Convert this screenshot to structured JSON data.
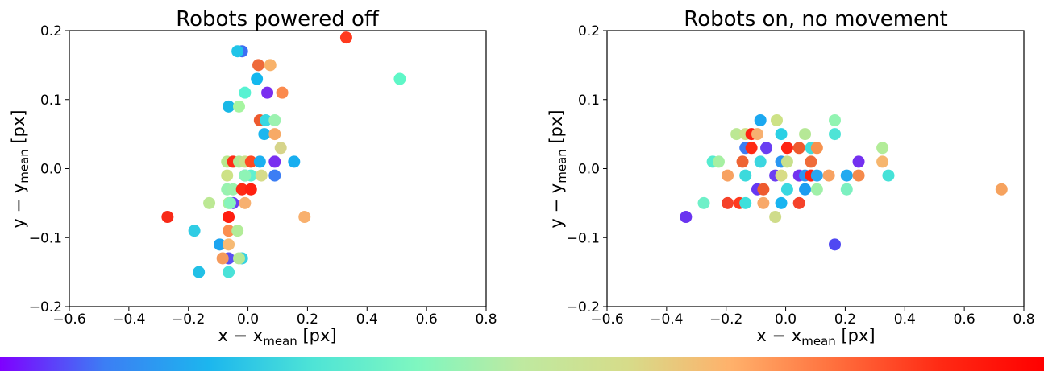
{
  "chart_data": [
    {
      "type": "scatter",
      "title": "Robots powered off",
      "xlabel": {
        "prefix": "x − x",
        "sub": "mean",
        "suffix": " [px]"
      },
      "ylabel": {
        "prefix": "y − y",
        "sub": "mean",
        "suffix": " [px]"
      },
      "xlim": [
        -0.6,
        0.8
      ],
      "ylim": [
        -0.2,
        0.2
      ],
      "xticks": [
        -0.6,
        -0.4,
        -0.2,
        0.0,
        0.2,
        0.4,
        0.6,
        0.8
      ],
      "xtick_labels": [
        "−0.6",
        "−0.4",
        "−0.2",
        "0.0",
        "0.2",
        "0.4",
        "0.6",
        "0.8"
      ],
      "yticks": [
        -0.2,
        -0.1,
        0.0,
        0.1,
        0.2
      ],
      "ytick_labels": [
        "−0.2",
        "−0.1",
        "0.0",
        "0.1",
        "0.2"
      ],
      "grid": false,
      "points": [
        {
          "x": 0.33,
          "y": 0.19,
          "color": "#ff3a1e"
        },
        {
          "x": 0.51,
          "y": 0.13,
          "color": "#5ef7c7"
        },
        {
          "x": -0.02,
          "y": 0.17,
          "color": "#3c6ef4"
        },
        {
          "x": -0.035,
          "y": 0.17,
          "color": "#20c4e8"
        },
        {
          "x": 0.035,
          "y": 0.15,
          "color": "#ee6a3a"
        },
        {
          "x": 0.075,
          "y": 0.15,
          "color": "#f8b26a"
        },
        {
          "x": 0.03,
          "y": 0.13,
          "color": "#14b8ee"
        },
        {
          "x": 0.065,
          "y": 0.11,
          "color": "#7a2ff0"
        },
        {
          "x": 0.115,
          "y": 0.11,
          "color": "#fb8a4e"
        },
        {
          "x": -0.01,
          "y": 0.11,
          "color": "#58f2d2"
        },
        {
          "x": -0.065,
          "y": 0.09,
          "color": "#18b8e6"
        },
        {
          "x": -0.03,
          "y": 0.09,
          "color": "#a6f5a0"
        },
        {
          "x": 0.04,
          "y": 0.07,
          "color": "#ee5a2e"
        },
        {
          "x": 0.06,
          "y": 0.07,
          "color": "#38d8e2"
        },
        {
          "x": 0.09,
          "y": 0.07,
          "color": "#9cf2b0"
        },
        {
          "x": 0.055,
          "y": 0.05,
          "color": "#1cb6ee"
        },
        {
          "x": 0.09,
          "y": 0.05,
          "color": "#f7aa66"
        },
        {
          "x": 0.11,
          "y": 0.03,
          "color": "#d6d48a"
        },
        {
          "x": -0.07,
          "y": 0.01,
          "color": "#b8e88e"
        },
        {
          "x": -0.05,
          "y": 0.01,
          "color": "#ff2b16"
        },
        {
          "x": -0.03,
          "y": 0.01,
          "color": "#b0e894"
        },
        {
          "x": -0.01,
          "y": 0.01,
          "color": "#cce08a"
        },
        {
          "x": 0.01,
          "y": 0.01,
          "color": "#ff4a22"
        },
        {
          "x": 0.04,
          "y": 0.01,
          "color": "#1cb0f0"
        },
        {
          "x": 0.09,
          "y": 0.01,
          "color": "#7a30f0"
        },
        {
          "x": 0.155,
          "y": 0.01,
          "color": "#18aef0"
        },
        {
          "x": -0.07,
          "y": -0.01,
          "color": "#cde286"
        },
        {
          "x": -0.01,
          "y": -0.01,
          "color": "#4a8cf2"
        },
        {
          "x": 0.01,
          "y": -0.01,
          "color": "#60f0d0"
        },
        {
          "x": 0.045,
          "y": -0.01,
          "color": "#d6dc8a"
        },
        {
          "x": 0.09,
          "y": -0.01,
          "color": "#3c7ef4"
        },
        {
          "x": -0.01,
          "y": -0.01,
          "color": "#8ef4b6"
        },
        {
          "x": -0.07,
          "y": -0.03,
          "color": "#98f2b0"
        },
        {
          "x": -0.05,
          "y": -0.03,
          "color": "#9cf2ac"
        },
        {
          "x": -0.02,
          "y": -0.03,
          "color": "#ff2a14"
        },
        {
          "x": 0.01,
          "y": -0.03,
          "color": "#ff2010"
        },
        {
          "x": -0.05,
          "y": -0.05,
          "color": "#6a40f2"
        },
        {
          "x": -0.065,
          "y": -0.05,
          "color": "#a8f09e"
        },
        {
          "x": -0.06,
          "y": -0.05,
          "color": "#86f4bc"
        },
        {
          "x": -0.13,
          "y": -0.05,
          "color": "#bce894"
        },
        {
          "x": -0.01,
          "y": -0.05,
          "color": "#f7b070"
        },
        {
          "x": -0.27,
          "y": -0.07,
          "color": "#f82a18"
        },
        {
          "x": -0.065,
          "y": -0.07,
          "color": "#ff1e10"
        },
        {
          "x": 0.19,
          "y": -0.07,
          "color": "#f8b06e"
        },
        {
          "x": -0.18,
          "y": -0.09,
          "color": "#30cce4"
        },
        {
          "x": -0.065,
          "y": -0.09,
          "color": "#fb8e50"
        },
        {
          "x": -0.035,
          "y": -0.09,
          "color": "#b2ec98"
        },
        {
          "x": -0.095,
          "y": -0.11,
          "color": "#1ca4f0"
        },
        {
          "x": -0.065,
          "y": -0.11,
          "color": "#f6ba74"
        },
        {
          "x": -0.065,
          "y": -0.13,
          "color": "#5a50f2"
        },
        {
          "x": -0.02,
          "y": -0.13,
          "color": "#36d2e2"
        },
        {
          "x": -0.03,
          "y": -0.13,
          "color": "#b6e896"
        },
        {
          "x": -0.085,
          "y": -0.13,
          "color": "#f59a5c"
        },
        {
          "x": -0.165,
          "y": -0.15,
          "color": "#22c0e6"
        },
        {
          "x": -0.065,
          "y": -0.15,
          "color": "#4ae2d8"
        }
      ]
    },
    {
      "type": "scatter",
      "title": "Robots on, no movement",
      "xlabel": {
        "prefix": "x − x",
        "sub": "mean",
        "suffix": " [px]"
      },
      "ylabel": {
        "prefix": "y − y",
        "sub": "mean",
        "suffix": " [px]"
      },
      "xlim": [
        -0.6,
        0.8
      ],
      "ylim": [
        -0.2,
        0.2
      ],
      "xticks": [
        -0.6,
        -0.4,
        -0.2,
        0.0,
        0.2,
        0.4,
        0.6,
        0.8
      ],
      "xtick_labels": [
        "−0.6",
        "−0.4",
        "−0.2",
        "0.0",
        "0.2",
        "0.4",
        "0.6",
        "0.8"
      ],
      "yticks": [
        -0.2,
        -0.1,
        0.0,
        0.1,
        0.2
      ],
      "ytick_labels": [
        "−0.2",
        "−0.1",
        "0.0",
        "0.1",
        "0.2"
      ],
      "grid": false,
      "points": [
        {
          "x": -0.085,
          "y": 0.07,
          "color": "#1ca8f0"
        },
        {
          "x": -0.03,
          "y": 0.07,
          "color": "#cde286"
        },
        {
          "x": 0.165,
          "y": 0.07,
          "color": "#92f4b2"
        },
        {
          "x": -0.165,
          "y": 0.05,
          "color": "#bce894"
        },
        {
          "x": -0.135,
          "y": 0.05,
          "color": "#d0e08a"
        },
        {
          "x": -0.115,
          "y": 0.05,
          "color": "#ff2010"
        },
        {
          "x": -0.095,
          "y": 0.05,
          "color": "#f7b070"
        },
        {
          "x": -0.015,
          "y": 0.05,
          "color": "#2ad0e4"
        },
        {
          "x": 0.065,
          "y": 0.05,
          "color": "#b6e896"
        },
        {
          "x": 0.165,
          "y": 0.05,
          "color": "#4ee4d6"
        },
        {
          "x": -0.135,
          "y": 0.03,
          "color": "#3c7cf4"
        },
        {
          "x": -0.115,
          "y": 0.03,
          "color": "#ff2a14"
        },
        {
          "x": -0.065,
          "y": 0.03,
          "color": "#6a3ef2"
        },
        {
          "x": 0.005,
          "y": 0.03,
          "color": "#ff2412"
        },
        {
          "x": 0.045,
          "y": 0.03,
          "color": "#ee5a2e"
        },
        {
          "x": 0.085,
          "y": 0.03,
          "color": "#40dcdc"
        },
        {
          "x": 0.105,
          "y": 0.03,
          "color": "#f7924e"
        },
        {
          "x": 0.325,
          "y": 0.03,
          "color": "#b2ec98"
        },
        {
          "x": -0.245,
          "y": 0.01,
          "color": "#56ecd0"
        },
        {
          "x": -0.225,
          "y": 0.01,
          "color": "#a6f0a2"
        },
        {
          "x": -0.145,
          "y": 0.01,
          "color": "#ee6434"
        },
        {
          "x": -0.085,
          "y": 0.01,
          "color": "#3cd6e0"
        },
        {
          "x": -0.015,
          "y": 0.01,
          "color": "#2a96f2"
        },
        {
          "x": 0.005,
          "y": 0.01,
          "color": "#c8e08c"
        },
        {
          "x": 0.085,
          "y": 0.01,
          "color": "#ef6c3a"
        },
        {
          "x": 0.245,
          "y": 0.01,
          "color": "#7430f0"
        },
        {
          "x": 0.325,
          "y": 0.01,
          "color": "#f6b66e"
        },
        {
          "x": -0.195,
          "y": -0.01,
          "color": "#f7a262"
        },
        {
          "x": -0.135,
          "y": -0.01,
          "color": "#3cdadc"
        },
        {
          "x": -0.035,
          "y": -0.01,
          "color": "#6c3ef2"
        },
        {
          "x": -0.015,
          "y": -0.01,
          "color": "#d8dc86"
        },
        {
          "x": 0.045,
          "y": -0.01,
          "color": "#7232f0"
        },
        {
          "x": 0.065,
          "y": -0.01,
          "color": "#2a92f2"
        },
        {
          "x": 0.085,
          "y": -0.01,
          "color": "#ff2010"
        },
        {
          "x": 0.105,
          "y": -0.01,
          "color": "#2aa6f0"
        },
        {
          "x": 0.145,
          "y": -0.01,
          "color": "#f7a262"
        },
        {
          "x": 0.205,
          "y": -0.01,
          "color": "#22aaf0"
        },
        {
          "x": 0.245,
          "y": -0.01,
          "color": "#f58a4c"
        },
        {
          "x": 0.345,
          "y": -0.01,
          "color": "#46e2d8"
        },
        {
          "x": -0.095,
          "y": -0.03,
          "color": "#6638f2"
        },
        {
          "x": -0.075,
          "y": -0.03,
          "color": "#ee5a2e"
        },
        {
          "x": 0.005,
          "y": -0.03,
          "color": "#3ad8e0"
        },
        {
          "x": 0.065,
          "y": -0.03,
          "color": "#1c9cf0"
        },
        {
          "x": 0.105,
          "y": -0.03,
          "color": "#a0f0a8"
        },
        {
          "x": 0.205,
          "y": -0.03,
          "color": "#7cf0c0"
        },
        {
          "x": 0.725,
          "y": -0.03,
          "color": "#f6a25e"
        },
        {
          "x": -0.275,
          "y": -0.05,
          "color": "#6ef0c8"
        },
        {
          "x": -0.195,
          "y": -0.05,
          "color": "#f5422a"
        },
        {
          "x": -0.155,
          "y": -0.05,
          "color": "#ff3a1e"
        },
        {
          "x": -0.135,
          "y": -0.05,
          "color": "#3ce0dc"
        },
        {
          "x": -0.075,
          "y": -0.05,
          "color": "#f8a868"
        },
        {
          "x": -0.015,
          "y": -0.05,
          "color": "#18b4f0"
        },
        {
          "x": 0.045,
          "y": -0.05,
          "color": "#f5422a"
        },
        {
          "x": -0.035,
          "y": -0.07,
          "color": "#cfdc8a"
        },
        {
          "x": -0.335,
          "y": -0.07,
          "color": "#6a34f0"
        },
        {
          "x": 0.165,
          "y": -0.11,
          "color": "#5048f2"
        }
      ]
    }
  ],
  "colorbar": {
    "stops": [
      "#7f00ff",
      "#3c7ef4",
      "#1cb6ee",
      "#4ee4d6",
      "#7ff7c0",
      "#bfe9a0",
      "#d6dc8a",
      "#ffb16b",
      "#ff6f3d",
      "#ff2a14",
      "#ff0000"
    ]
  }
}
